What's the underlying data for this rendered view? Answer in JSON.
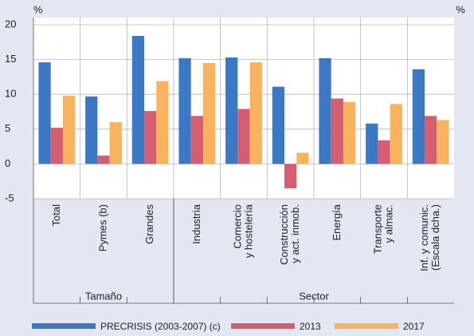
{
  "chart_data": {
    "type": "bar",
    "y_unit_left": "%",
    "y_unit_right": "%",
    "categories": [
      [
        "Total"
      ],
      [
        "Pymes (b)"
      ],
      [
        "Grandes"
      ],
      [
        "Industria"
      ],
      [
        "Comercio",
        "y hostelería"
      ],
      [
        "Construcción",
        "y act. inmob."
      ],
      [
        "Energía"
      ],
      [
        "Transporte",
        "y almac."
      ],
      [
        "Inf. y comunic.",
        "(Escala dcha.)"
      ]
    ],
    "group_labels": [
      "Tamaño",
      "Sector"
    ],
    "series": [
      {
        "name": "PRECRISIS (2003-2007) (c)",
        "color": "#3b78c6",
        "values": [
          14.6,
          9.7,
          18.4,
          15.2,
          15.3,
          11.1,
          15.2,
          5.8,
          13.6
        ]
      },
      {
        "name": "2013",
        "color": "#d45f73",
        "values": [
          5.2,
          1.2,
          7.6,
          6.9,
          7.9,
          -3.5,
          9.4,
          3.4,
          6.9
        ]
      },
      {
        "name": "2017",
        "color": "#f9b25e",
        "values": [
          9.8,
          6.0,
          11.9,
          14.5,
          14.6,
          1.6,
          8.9,
          8.6,
          6.3
        ]
      }
    ],
    "ylim": [
      -5,
      20
    ],
    "yticks": [
      -5,
      0,
      5,
      10,
      15,
      20
    ],
    "grid": true
  }
}
